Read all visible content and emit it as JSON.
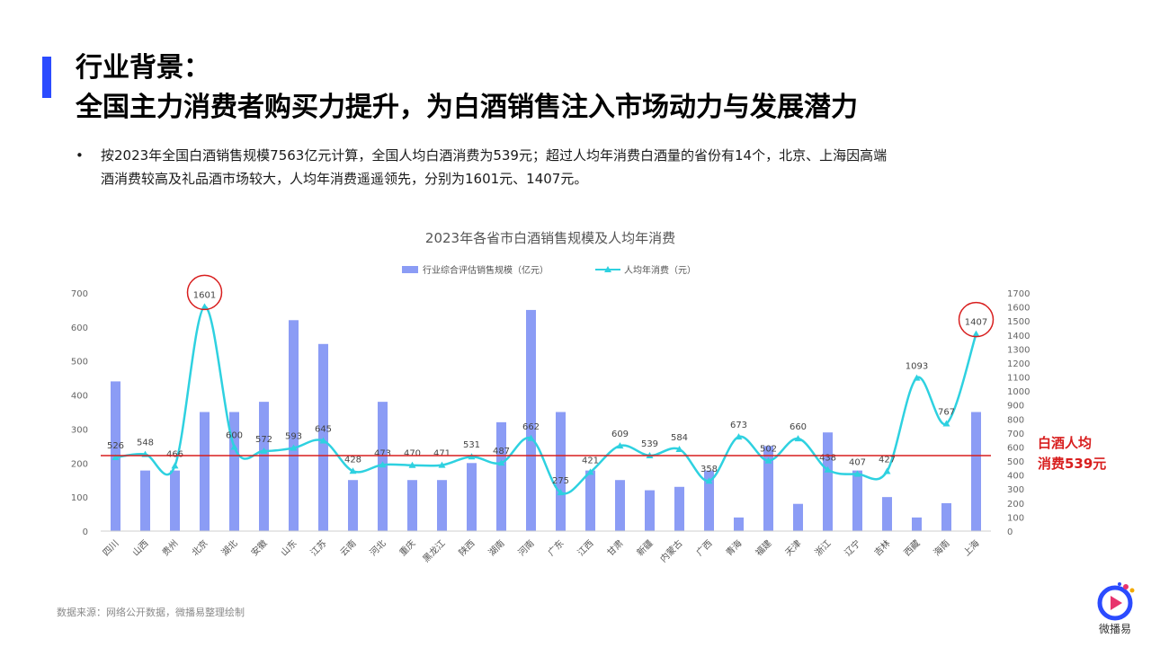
{
  "header": {
    "title_line1": "行业背景：",
    "title_line2": "全国主力消费者购买力提升，为白酒销售注入市场动力与发展潜力"
  },
  "bullet": {
    "marker": "•",
    "line1": "按2023年全国白酒销售规模7563亿元计算，全国人均白酒消费为539元；超过人均年消费白酒量的省份有14个，北京、上海因高端",
    "line2": "酒消费较高及礼品酒市场较大，人均年消费遥遥领先，分别为1601元、1407元。"
  },
  "chart_data": {
    "type": "bar+line",
    "title": "2023年各省市白酒销售规模及人均年消费",
    "categories": [
      "四川",
      "山西",
      "贵州",
      "北京",
      "湖北",
      "安徽",
      "山东",
      "江苏",
      "云南",
      "河北",
      "重庆",
      "黑龙江",
      "陕西",
      "湖南",
      "河南",
      "广东",
      "江西",
      "甘肃",
      "新疆",
      "内蒙古",
      "广西",
      "青海",
      "福建",
      "天津",
      "浙江",
      "辽宁",
      "吉林",
      "西藏",
      "海南",
      "上海"
    ],
    "series": [
      {
        "name": "行业综合评估销售规模（亿元）",
        "type": "bar",
        "axis": "left",
        "color": "#8b9cf5",
        "values": [
          440,
          178,
          178,
          350,
          350,
          380,
          620,
          550,
          150,
          380,
          150,
          150,
          200,
          320,
          650,
          350,
          178,
          150,
          120,
          130,
          178,
          40,
          250,
          80,
          290,
          178,
          100,
          40,
          82,
          350
        ]
      },
      {
        "name": "人均年消费（元）",
        "type": "line",
        "axis": "right",
        "color": "#2ed1e0",
        "values": [
          526,
          548,
          466,
          1601,
          600,
          572,
          593,
          645,
          428,
          473,
          470,
          471,
          531,
          487,
          662,
          275,
          421,
          609,
          539,
          584,
          358,
          673,
          502,
          660,
          438,
          407,
          427,
          1093,
          767,
          1407
        ]
      }
    ],
    "y_left": {
      "min": 0,
      "max": 700,
      "ticks": [
        0,
        100,
        200,
        300,
        400,
        500,
        600,
        700
      ]
    },
    "y_right": {
      "min": 0,
      "max": 1700,
      "ticks": [
        0,
        100,
        200,
        300,
        400,
        500,
        600,
        700,
        800,
        900,
        1000,
        1100,
        1200,
        1300,
        1400,
        1500,
        1600,
        1700
      ]
    },
    "reference_line": {
      "value": 539,
      "axis": "right",
      "color": "#d81e1e",
      "label_line1": "白酒人均",
      "label_line2": "消费539元"
    },
    "highlighted": [
      "北京",
      "上海"
    ],
    "legend_position": "top-center",
    "grid": false
  },
  "footnote": "数据来源：网络公开数据，微播易整理绘制",
  "logo": {
    "text": "微播易",
    "colors": [
      "#2b4bff",
      "#e8336d",
      "#f2a900"
    ]
  }
}
